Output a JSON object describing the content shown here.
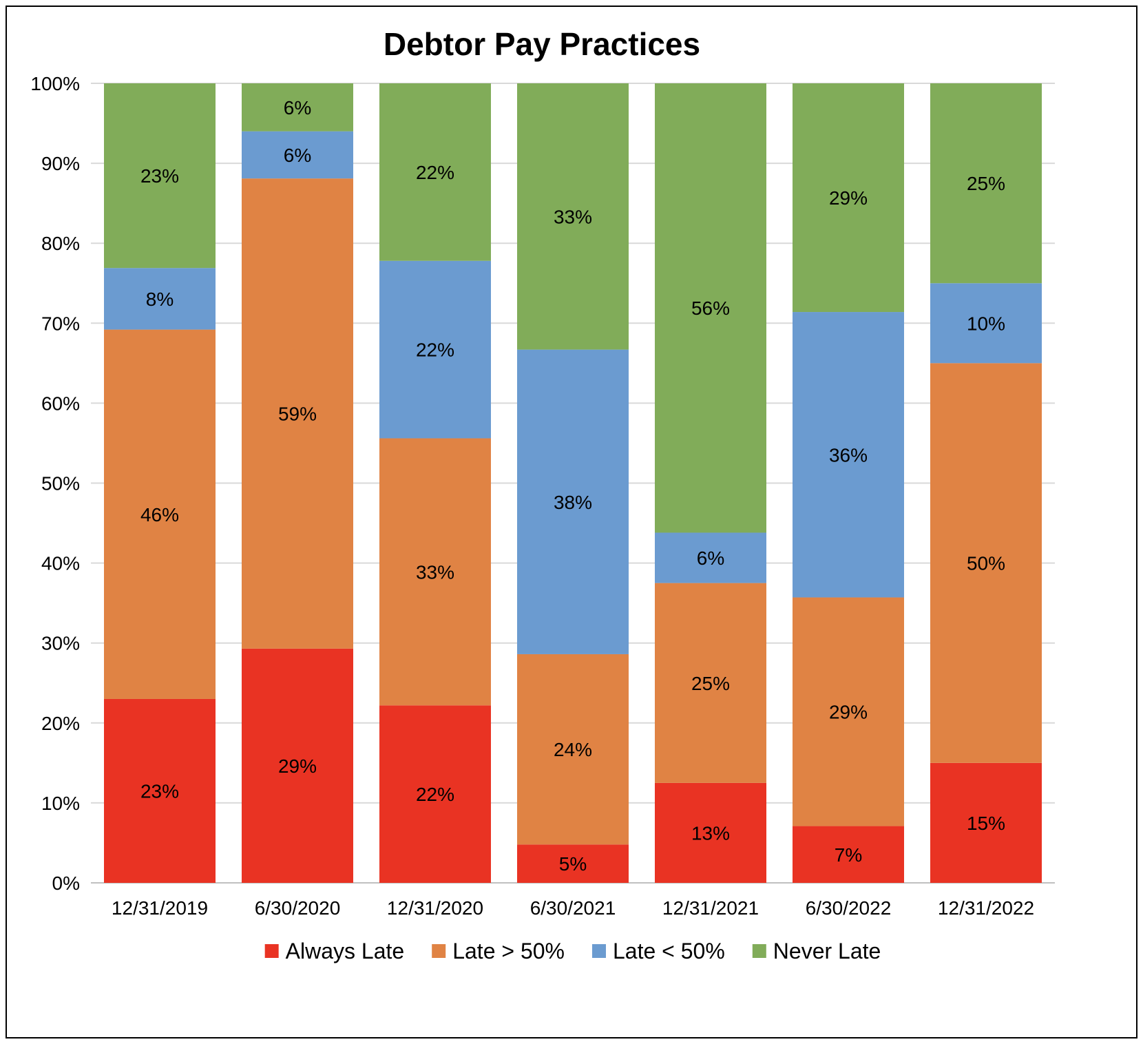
{
  "chart_data": {
    "type": "bar",
    "stacked": true,
    "percent_stacked": true,
    "title": "Debtor Pay Practices",
    "xlabel": "",
    "ylabel": "",
    "ylim": [
      0,
      100
    ],
    "y_ticks": [
      "0%",
      "10%",
      "20%",
      "30%",
      "40%",
      "50%",
      "60%",
      "70%",
      "80%",
      "90%",
      "100%"
    ],
    "grid": true,
    "legend_position": "bottom",
    "categories": [
      "12/31/2019",
      "6/30/2020",
      "12/31/2020",
      "6/30/2021",
      "12/31/2021",
      "6/30/2022",
      "12/31/2022"
    ],
    "series": [
      {
        "name": "Always Late",
        "color": "#E93323",
        "values": [
          23,
          29,
          22,
          5,
          13,
          7,
          15
        ],
        "tops": [
          23.0,
          29.3,
          22.2,
          4.8,
          12.5,
          7.1,
          15.0
        ],
        "labels": [
          "23%",
          "29%",
          "22%",
          "5%",
          "13%",
          "7%",
          "15%"
        ]
      },
      {
        "name": "Late > 50%",
        "color": "#E08344",
        "values": [
          46,
          59,
          33,
          24,
          25,
          29,
          50
        ],
        "tops": [
          69.2,
          88.1,
          55.6,
          28.6,
          37.5,
          35.7,
          65.0
        ],
        "labels": [
          "46%",
          "59%",
          "33%",
          "24%",
          "25%",
          "29%",
          "50%"
        ]
      },
      {
        "name": "Late < 50%",
        "color": "#6B9BD0",
        "values": [
          8,
          6,
          22,
          38,
          6,
          36,
          10
        ],
        "tops": [
          76.9,
          94.0,
          77.8,
          66.7,
          43.8,
          71.4,
          75.0
        ],
        "labels": [
          "8%",
          "6%",
          "22%",
          "38%",
          "6%",
          "36%",
          "10%"
        ]
      },
      {
        "name": "Never Late",
        "color": "#81AC59",
        "values": [
          23,
          6,
          22,
          33,
          56,
          29,
          25
        ],
        "tops": [
          100,
          100,
          100,
          100,
          100,
          100,
          100
        ],
        "labels": [
          "23%",
          "6%",
          "22%",
          "33%",
          "56%",
          "29%",
          "25%"
        ]
      }
    ]
  }
}
